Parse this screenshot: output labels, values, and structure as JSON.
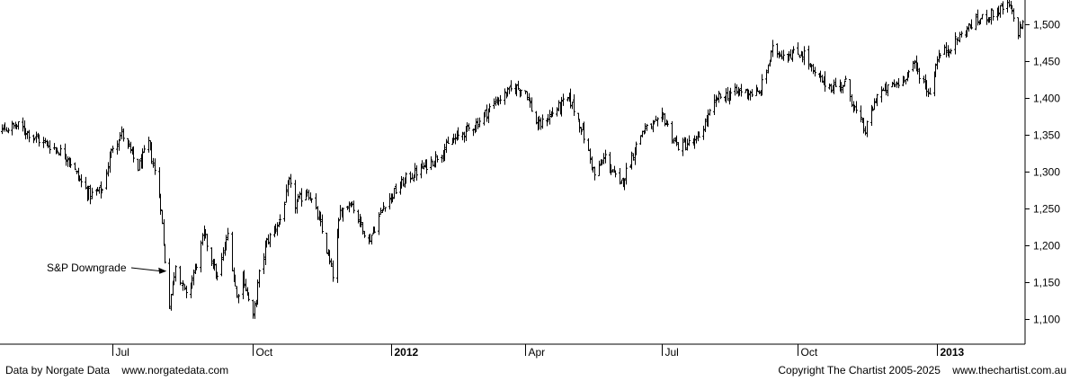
{
  "chart_data": {
    "type": "ohlc",
    "title": "",
    "xlabel": "",
    "ylabel": "",
    "ylim": [
      1060,
      1530
    ],
    "grid": false,
    "y_ticks": [
      1100,
      1150,
      1200,
      1250,
      1300,
      1350,
      1400,
      1450,
      1500
    ],
    "y_tick_labels": [
      "1,100",
      "1,150",
      "1,200",
      "1,250",
      "1,300",
      "1,350",
      "1,400",
      "1,450",
      "1,500"
    ],
    "x_ticks": [
      {
        "label": "Jul",
        "date": "2011-07-01",
        "bold": false
      },
      {
        "label": "Oct",
        "date": "2011-10-03",
        "bold": false
      },
      {
        "label": "2012",
        "date": "2012-01-03",
        "bold": true
      },
      {
        "label": "Apr",
        "date": "2012-04-02",
        "bold": false
      },
      {
        "label": "Jul",
        "date": "2012-07-02",
        "bold": false
      },
      {
        "label": "Oct",
        "date": "2012-10-01",
        "bold": false
      },
      {
        "label": "2013",
        "date": "2013-01-02",
        "bold": true
      }
    ],
    "x_range": [
      "2011-03-31",
      "2013-03-15"
    ],
    "annotation": {
      "text": "S&P Downgrade",
      "date": "2011-08-08",
      "value": 1165
    },
    "close_path": [
      [
        "2011-03-31",
        1320
      ],
      [
        "2011-04-12",
        1355
      ],
      [
        "2011-04-29",
        1362
      ],
      [
        "2011-05-11",
        1345
      ],
      [
        "2011-05-25",
        1330
      ],
      [
        "2011-06-01",
        1320
      ],
      [
        "2011-06-10",
        1285
      ],
      [
        "2011-06-16",
        1268
      ],
      [
        "2011-06-24",
        1275
      ],
      [
        "2011-07-01",
        1335
      ],
      [
        "2011-07-07",
        1352
      ],
      [
        "2011-07-18",
        1305
      ],
      [
        "2011-07-25",
        1338
      ],
      [
        "2011-07-29",
        1300
      ],
      [
        "2011-08-02",
        1255
      ],
      [
        "2011-08-04",
        1200
      ],
      [
        "2011-08-08",
        1120
      ],
      [
        "2011-08-12",
        1175
      ],
      [
        "2011-08-19",
        1130
      ],
      [
        "2011-08-26",
        1175
      ],
      [
        "2011-08-31",
        1215
      ],
      [
        "2011-09-09",
        1155
      ],
      [
        "2011-09-16",
        1215
      ],
      [
        "2011-09-22",
        1130
      ],
      [
        "2011-09-26",
        1160
      ],
      [
        "2011-10-03",
        1100
      ],
      [
        "2011-10-07",
        1160
      ],
      [
        "2011-10-12",
        1205
      ],
      [
        "2011-10-21",
        1235
      ],
      [
        "2011-10-27",
        1285
      ],
      [
        "2011-10-31",
        1255
      ],
      [
        "2011-11-08",
        1275
      ],
      [
        "2011-11-16",
        1235
      ],
      [
        "2011-11-25",
        1160
      ],
      [
        "2011-11-30",
        1245
      ],
      [
        "2011-12-07",
        1260
      ],
      [
        "2011-12-19",
        1205
      ],
      [
        "2011-12-30",
        1258
      ],
      [
        "2012-01-13",
        1290
      ],
      [
        "2012-01-31",
        1315
      ],
      [
        "2012-02-15",
        1345
      ],
      [
        "2012-02-29",
        1365
      ],
      [
        "2012-03-13",
        1395
      ],
      [
        "2012-03-26",
        1415
      ],
      [
        "2012-04-02",
        1410
      ],
      [
        "2012-04-10",
        1360
      ],
      [
        "2012-04-20",
        1380
      ],
      [
        "2012-05-01",
        1400
      ],
      [
        "2012-05-10",
        1355
      ],
      [
        "2012-05-18",
        1295
      ],
      [
        "2012-05-25",
        1320
      ],
      [
        "2012-06-04",
        1280
      ],
      [
        "2012-06-19",
        1355
      ],
      [
        "2012-06-29",
        1365
      ],
      [
        "2012-07-03",
        1375
      ],
      [
        "2012-07-12",
        1335
      ],
      [
        "2012-07-25",
        1340
      ],
      [
        "2012-08-08",
        1400
      ],
      [
        "2012-08-24",
        1410
      ],
      [
        "2012-09-05",
        1405
      ],
      [
        "2012-09-14",
        1465
      ],
      [
        "2012-09-21",
        1460
      ],
      [
        "2012-10-05",
        1460
      ],
      [
        "2012-10-12",
        1430
      ],
      [
        "2012-10-23",
        1415
      ],
      [
        "2012-11-02",
        1420
      ],
      [
        "2012-11-09",
        1380
      ],
      [
        "2012-11-15",
        1355
      ],
      [
        "2012-11-23",
        1405
      ],
      [
        "2012-12-07",
        1420
      ],
      [
        "2012-12-18",
        1445
      ],
      [
        "2012-12-28",
        1405
      ],
      [
        "2013-01-02",
        1455
      ],
      [
        "2013-01-11",
        1470
      ],
      [
        "2013-01-25",
        1500
      ],
      [
        "2013-02-08",
        1515
      ],
      [
        "2013-02-19",
        1525
      ],
      [
        "2013-02-25",
        1490
      ],
      [
        "2013-03-05",
        1525
      ],
      [
        "2013-03-15",
        1510
      ]
    ]
  },
  "footer": {
    "data_source": "Data by Norgate Data",
    "data_url": "www.norgatedata.com",
    "copyright": "Copyright The Chartist 2005-2025",
    "site_url": "www.thechartist.com.au"
  }
}
